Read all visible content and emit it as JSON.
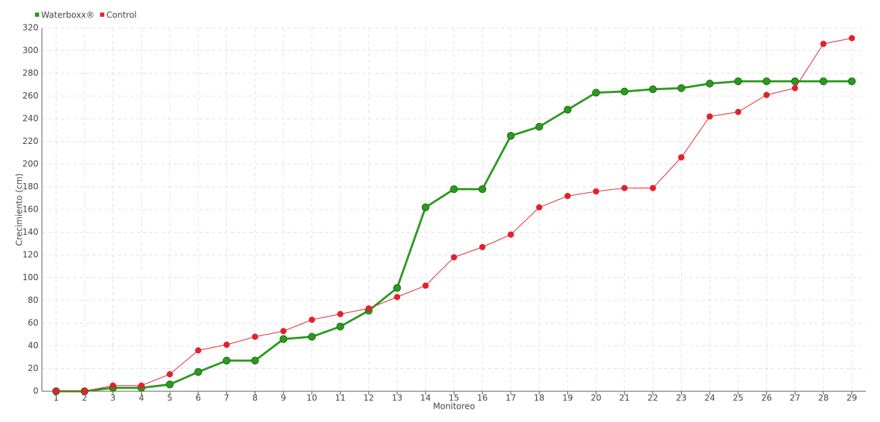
{
  "chart_data": {
    "type": "line",
    "x_label": "Monitoreo",
    "y_label": "Crecimiento (cm)",
    "x": [
      1,
      2,
      3,
      4,
      5,
      6,
      7,
      8,
      9,
      10,
      11,
      12,
      13,
      14,
      15,
      16,
      17,
      18,
      19,
      20,
      21,
      22,
      23,
      24,
      25,
      26,
      27,
      28,
      29
    ],
    "xlim": [
      0.5,
      29.5
    ],
    "ylim": [
      0,
      320
    ],
    "yticks": [
      0,
      20,
      40,
      60,
      80,
      100,
      120,
      140,
      160,
      180,
      200,
      220,
      240,
      260,
      280,
      300,
      320
    ],
    "grid": true,
    "legend": "top-left",
    "series": [
      {
        "name": "Waterboxx®",
        "color": "#2b9a1e",
        "values": [
          0,
          0,
          3,
          3,
          6,
          17,
          27,
          27,
          46,
          48,
          57,
          71,
          91,
          162,
          178,
          178,
          225,
          233,
          248,
          263,
          264,
          266,
          267,
          271,
          273,
          273,
          273,
          273,
          273
        ]
      },
      {
        "name": "Control",
        "color": "#e3212c",
        "values": [
          0,
          0,
          5,
          5,
          15,
          36,
          41,
          48,
          53,
          63,
          68,
          73,
          83,
          93,
          118,
          127,
          138,
          162,
          172,
          176,
          179,
          179,
          206,
          242,
          246,
          261,
          267,
          306,
          311
        ]
      }
    ]
  }
}
